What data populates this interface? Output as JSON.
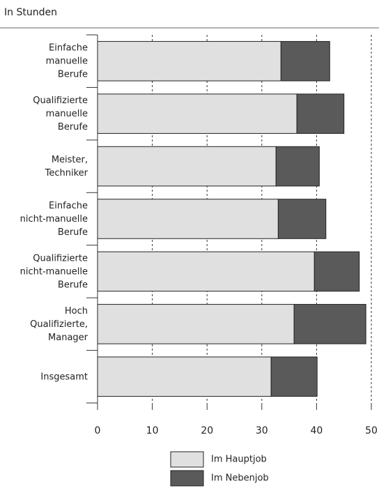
{
  "chart_data": {
    "type": "stacked_barh",
    "subtitle": "In Stunden",
    "categories": [
      "Einfache\nmanuelle\nBerufe",
      "Qualifizierte\nmanuelle\nBerufe",
      "Meister,\nTechniker",
      "Einfache\nnicht-manuelle\nBerufe",
      "Qualifizierte\nnicht-manuelle\nBerufe",
      "Hoch\nQualifizierte,\nManager",
      "Insgesamt"
    ],
    "series": [
      {
        "name": "Im Hauptjob",
        "color": "#e0e0e0",
        "values": [
          33.5,
          36.4,
          32.6,
          33.0,
          39.6,
          35.9,
          31.7
        ]
      },
      {
        "name": "Im Nebenjob",
        "color": "#5a5a5a",
        "values": [
          8.9,
          8.6,
          7.9,
          8.7,
          8.2,
          13.1,
          8.4
        ]
      }
    ],
    "xlim": [
      0,
      50
    ],
    "xticks": [
      0,
      10,
      20,
      30,
      40,
      50
    ],
    "grid": true
  }
}
